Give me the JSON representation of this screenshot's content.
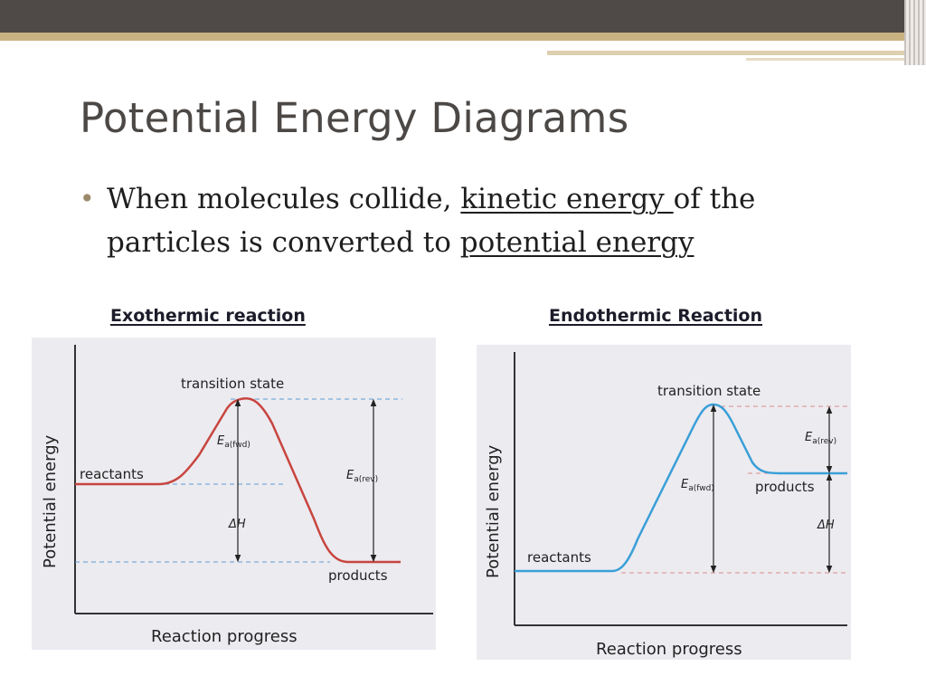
{
  "slide": {
    "title": "Potential Energy Diagrams",
    "bullet": {
      "part1": "When molecules collide, ",
      "kinetic": "kinetic energy ",
      "part2": "of the particles is converted to ",
      "potential": "potential energy"
    }
  },
  "diagrams": [
    {
      "title": "Exothermic reaction",
      "ylabel": "Potential energy",
      "xlabel": "Reaction progress",
      "ts": "transition state",
      "reactants": "reactants",
      "products": "products",
      "ea_fwd": {
        "main": "E",
        "sub": "a(fwd)"
      },
      "ea_rev": {
        "main": "E",
        "sub": "a(rev)"
      },
      "dh": "ΔH",
      "curve_color": "#c8453f",
      "energy": {
        "reactants": 0.4,
        "transition": 1.0,
        "products": 0.1
      }
    },
    {
      "title": "Endothermic Reaction",
      "ylabel": "Potential energy",
      "xlabel": "Reaction progress",
      "ts": "transition state",
      "reactants": "reactants",
      "products": "products",
      "ea_fwd": {
        "main": "E",
        "sub": "a(fwd)"
      },
      "ea_rev": {
        "main": "E",
        "sub": "a(rev)"
      },
      "dh": "ΔH",
      "curve_color": "#3a9fd8",
      "energy": {
        "reactants": 0.0,
        "transition": 1.0,
        "products": 0.57
      }
    }
  ]
}
